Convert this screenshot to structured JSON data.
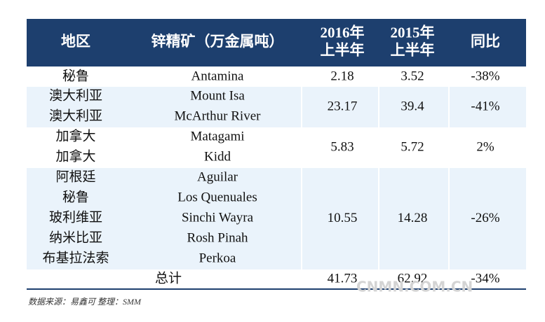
{
  "header": {
    "columns": [
      [
        "地区"
      ],
      [
        "锌精矿（万金属吨）"
      ],
      [
        "2016年",
        "上半年"
      ],
      [
        "2015年",
        "上半年"
      ],
      [
        "同比"
      ]
    ]
  },
  "groups": [
    {
      "regions": [
        "秘鲁"
      ],
      "mines": [
        "Antamina"
      ],
      "h1_2016": "2.18",
      "h1_2015": "3.52",
      "yoy": "-38%"
    },
    {
      "regions": [
        "澳大利亚",
        "澳大利亚"
      ],
      "mines": [
        "Mount Isa",
        "McArthur River"
      ],
      "h1_2016": "23.17",
      "h1_2015": "39.4",
      "yoy": "-41%"
    },
    {
      "regions": [
        "加拿大",
        "加拿大"
      ],
      "mines": [
        "Matagami",
        "Kidd"
      ],
      "h1_2016": "5.83",
      "h1_2015": "5.72",
      "yoy": "2%"
    },
    {
      "regions": [
        "阿根廷",
        "秘鲁",
        "玻利维亚",
        "纳米比亚",
        "布基拉法索"
      ],
      "mines": [
        "Aguilar",
        "Los Quenuales",
        "Sinchi Wayra",
        "Rosh Pinah",
        "Perkoa"
      ],
      "h1_2016": "10.55",
      "h1_2015": "14.28",
      "yoy": "-26%"
    }
  ],
  "total": {
    "label": "总计",
    "h1_2016": "41.73",
    "h1_2015": "62.92",
    "yoy": "-34%"
  },
  "source": "数据来源：易鑫可 整理：SMM",
  "watermark": "CNMN.COM.CN"
}
